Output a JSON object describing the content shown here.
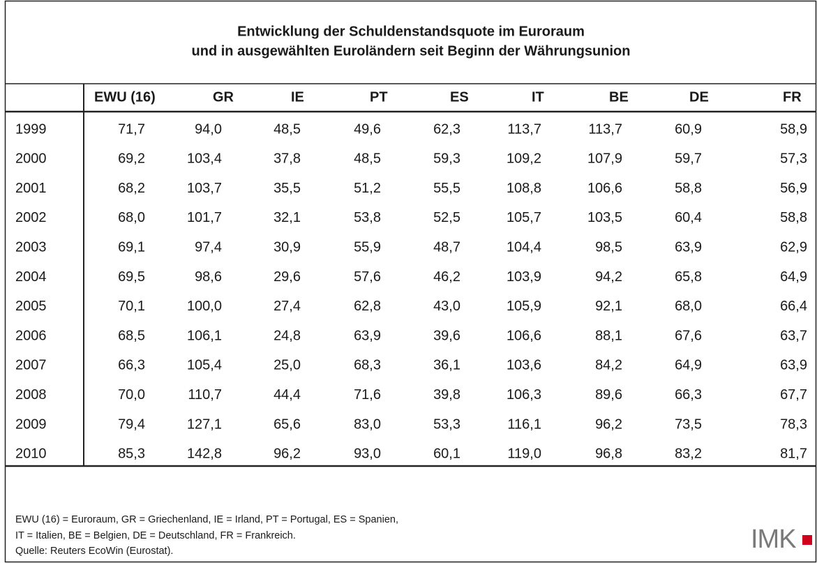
{
  "title": [
    "Entwicklung der Schuldenstandsquote im Euroraum",
    "und in ausgewählten Euroländern seit Beginn der Währungsunion"
  ],
  "table": {
    "columns": [
      "EWU (16)",
      "GR",
      "IE",
      "PT",
      "ES",
      "IT",
      "BE",
      "DE",
      "FR"
    ],
    "rows": [
      [
        "1999",
        "71,7",
        "94,0",
        "48,5",
        "49,6",
        "62,3",
        "113,7",
        "113,7",
        "60,9",
        "58,9"
      ],
      [
        "2000",
        "69,2",
        "103,4",
        "37,8",
        "48,5",
        "59,3",
        "109,2",
        "107,9",
        "59,7",
        "57,3"
      ],
      [
        "2001",
        "68,2",
        "103,7",
        "35,5",
        "51,2",
        "55,5",
        "108,8",
        "106,6",
        "58,8",
        "56,9"
      ],
      [
        "2002",
        "68,0",
        "101,7",
        "32,1",
        "53,8",
        "52,5",
        "105,7",
        "103,5",
        "60,4",
        "58,8"
      ],
      [
        "2003",
        "69,1",
        "97,4",
        "30,9",
        "55,9",
        "48,7",
        "104,4",
        "98,5",
        "63,9",
        "62,9"
      ],
      [
        "2004",
        "69,5",
        "98,6",
        "29,6",
        "57,6",
        "46,2",
        "103,9",
        "94,2",
        "65,8",
        "64,9"
      ],
      [
        "2005",
        "70,1",
        "100,0",
        "27,4",
        "62,8",
        "43,0",
        "105,9",
        "92,1",
        "68,0",
        "66,4"
      ],
      [
        "2006",
        "68,5",
        "106,1",
        "24,8",
        "63,9",
        "39,6",
        "106,6",
        "88,1",
        "67,6",
        "63,7"
      ],
      [
        "2007",
        "66,3",
        "105,4",
        "25,0",
        "68,3",
        "36,1",
        "103,6",
        "84,2",
        "64,9",
        "63,9"
      ],
      [
        "2008",
        "70,0",
        "110,7",
        "44,4",
        "71,6",
        "39,8",
        "106,3",
        "89,6",
        "66,3",
        "67,7"
      ],
      [
        "2009",
        "79,4",
        "127,1",
        "65,6",
        "83,0",
        "53,3",
        "116,1",
        "96,2",
        "73,5",
        "78,3"
      ],
      [
        "2010",
        "85,3",
        "142,8",
        "96,2",
        "93,0",
        "60,1",
        "119,0",
        "96,8",
        "83,2",
        "81,7"
      ]
    ]
  },
  "notes": [
    "EWU (16) = Euroraum, GR = Griechenland, IE = Irland, PT = Portugal, ES = Spanien,",
    "IT = Italien, BE = Belgien, DE = Deutschland, FR = Frankreich."
  ],
  "source": "Quelle: Reuters EcoWin (Eurostat).",
  "logo": "IMK"
}
